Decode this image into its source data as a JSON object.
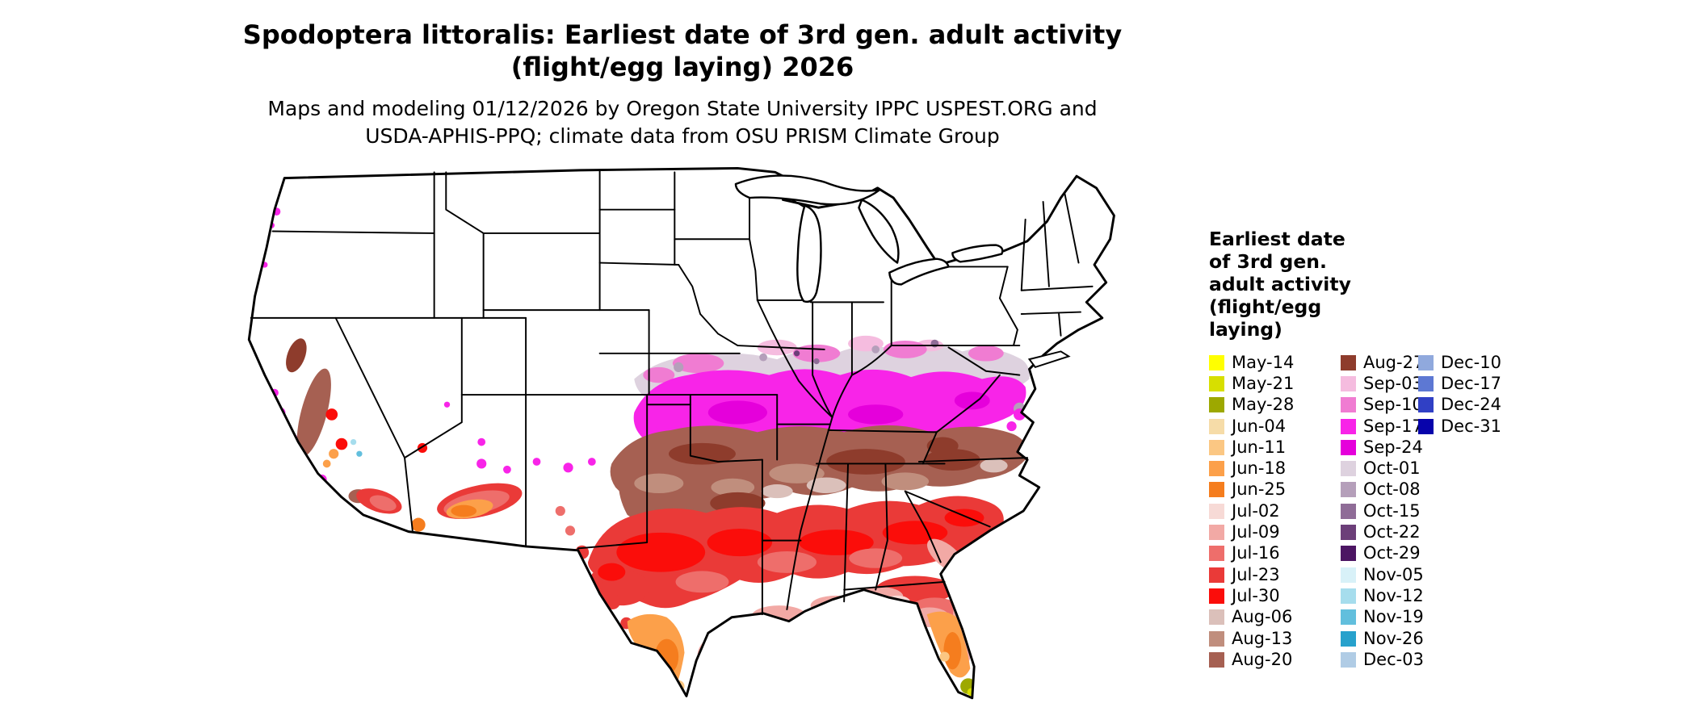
{
  "title": {
    "line1": "Spodoptera littoralis: Earliest date of 3rd gen. adult activity",
    "line2": "(flight/egg laying) 2026"
  },
  "subtitle": {
    "line1": "Maps and modeling 01/12/2026 by Oregon State University IPPC USPEST.ORG and",
    "line2": "USDA-APHIS-PPQ; climate data from OSU PRISM Climate Group"
  },
  "map": {
    "land_color": "#FFFFFF",
    "border_color": "#000000"
  },
  "legend": {
    "title_lines": [
      "Earliest date",
      "of 3rd gen.",
      "adult activity",
      "(flight/egg",
      "laying)"
    ],
    "columns": [
      [
        {
          "label": "May-14",
          "color": "#FFFF00"
        },
        {
          "label": "May-21",
          "color": "#D7DF00"
        },
        {
          "label": "May-28",
          "color": "#9DA800"
        },
        {
          "label": "Jun-04",
          "color": "#F6DCA8"
        },
        {
          "label": "Jun-11",
          "color": "#FBC783"
        },
        {
          "label": "Jun-18",
          "color": "#FCA04A"
        },
        {
          "label": "Jun-25",
          "color": "#F57D1E"
        },
        {
          "label": "Jul-02",
          "color": "#F7DAD6"
        },
        {
          "label": "Jul-09",
          "color": "#F2A9A5"
        },
        {
          "label": "Jul-16",
          "color": "#EE6E6B"
        },
        {
          "label": "Jul-23",
          "color": "#EA3A38"
        },
        {
          "label": "Jul-30",
          "color": "#FB0D0A"
        },
        {
          "label": "Aug-06",
          "color": "#DBC0BA"
        },
        {
          "label": "Aug-13",
          "color": "#C08E7D"
        },
        {
          "label": "Aug-20",
          "color": "#A66052"
        }
      ],
      [
        {
          "label": "Aug-27",
          "color": "#8E3C2C"
        },
        {
          "label": "Sep-03",
          "color": "#F5BCDF"
        },
        {
          "label": "Sep-10",
          "color": "#F07CD2"
        },
        {
          "label": "Sep-17",
          "color": "#F824E8"
        },
        {
          "label": "Sep-24",
          "color": "#E500DB"
        },
        {
          "label": "Oct-01",
          "color": "#DED2DF"
        },
        {
          "label": "Oct-08",
          "color": "#B59FBA"
        },
        {
          "label": "Oct-15",
          "color": "#8F6C97"
        },
        {
          "label": "Oct-22",
          "color": "#6C3F79"
        },
        {
          "label": "Oct-29",
          "color": "#4C1563"
        },
        {
          "label": "Nov-05",
          "color": "#D8F1F8"
        },
        {
          "label": "Nov-12",
          "color": "#A6DDED"
        },
        {
          "label": "Nov-19",
          "color": "#62BFDD"
        },
        {
          "label": "Nov-26",
          "color": "#27A1CC"
        },
        {
          "label": "Dec-03",
          "color": "#B0CCE5"
        }
      ],
      [
        {
          "label": "Dec-10",
          "color": "#90A9DD"
        },
        {
          "label": "Dec-17",
          "color": "#5D78D3"
        },
        {
          "label": "Dec-24",
          "color": "#3040C5"
        },
        {
          "label": "Dec-31",
          "color": "#0703AB"
        }
      ]
    ]
  }
}
